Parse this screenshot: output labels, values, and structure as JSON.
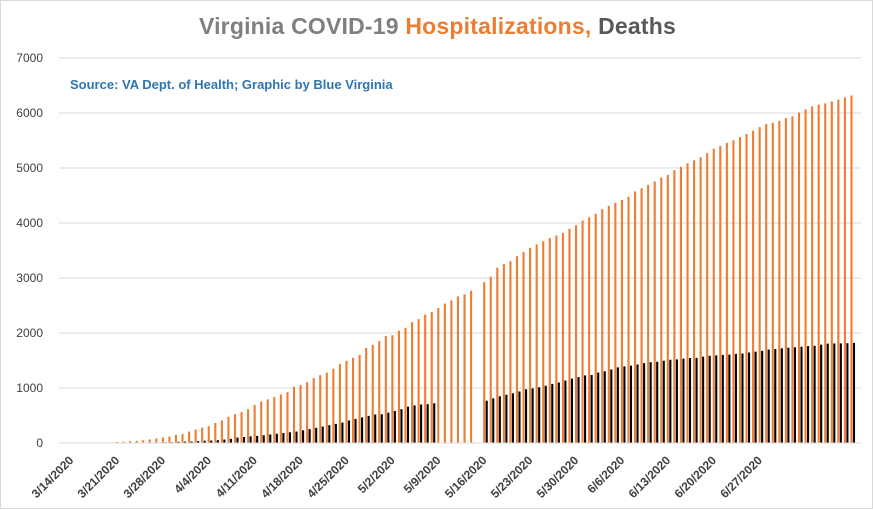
{
  "title": {
    "part1": "Virginia COVID-19 ",
    "part2": "Hospitalizations,",
    "part3": " Deaths"
  },
  "source": "Source: VA Dept. of Health; Graphic by Blue Virginia",
  "colors": {
    "title_gray": "#7f7f7f",
    "title_orange": "#ed7d31",
    "title_dark": "#595959",
    "source": "#2e75b6",
    "hospitalizations": "#ed7d31",
    "deaths": "#000000",
    "grid": "#d9d9d9"
  },
  "chart_data": {
    "type": "bar",
    "title": "Virginia COVID-19 Hospitalizations, Deaths",
    "xlabel": "",
    "ylabel": "",
    "ylim": [
      0,
      7000
    ],
    "yticks": [
      0,
      1000,
      2000,
      3000,
      4000,
      5000,
      6000,
      7000
    ],
    "grid": true,
    "legend": "none",
    "x_tick_labels": [
      "3/14/2020",
      "3/21/2020",
      "3/28/2020",
      "4/4/2020",
      "4/11/2020",
      "4/18/2020",
      "4/25/2020",
      "5/2/2020",
      "5/9/2020",
      "5/16/2020",
      "5/23/2020",
      "5/30/2020",
      "6/6/2020",
      "6/13/2020",
      "6/20/2020",
      "6/27/2020"
    ],
    "x_start": "3/14/2020",
    "x_end": "7/3/2020",
    "series": [
      {
        "key": "hospitalizations",
        "values": [
          0,
          0,
          0,
          0,
          0,
          0,
          0,
          19,
          25,
          34,
          40,
          50,
          65,
          83,
          101,
          116,
          145,
          165,
          208,
          246,
          279,
          305,
          364,
          412,
          476,
          525,
          563,
          615,
          690,
          755,
          793,
          835,
          882,
          924,
          1022,
          1053,
          1105,
          1181,
          1233,
          1278,
          1351,
          1433,
          1494,
          1550,
          1600,
          1728,
          1783,
          1853,
          1943,
          1959,
          2041,
          2095,
          2197,
          2253,
          2335,
          2383,
          2457,
          2535,
          2592,
          2665,
          2702,
          2770,
          0,
          2923,
          3025,
          3189,
          3252,
          3305,
          3396,
          3475,
          3548,
          3611,
          3668,
          3726,
          3773,
          3819,
          3895,
          3959,
          4042,
          4104,
          4168,
          4252,
          4311,
          4366,
          4419,
          4478,
          4574,
          4632,
          4693,
          4756,
          4826,
          4874,
          4961,
          5021,
          5085,
          5140,
          5195,
          5270,
          5352,
          5401,
          5458,
          5505,
          5561,
          5619,
          5678,
          5743,
          5800,
          5821,
          5856,
          5907,
          5939,
          6011,
          6065,
          6120,
          6150,
          6175,
          6211,
          6242,
          6285,
          6319
        ]
      },
      {
        "key": "deaths",
        "values": [
          0,
          0,
          0,
          0,
          0,
          0,
          0,
          2,
          3,
          3,
          5,
          7,
          7,
          9,
          13,
          14,
          22,
          25,
          27,
          34,
          41,
          45,
          51,
          63,
          75,
          99,
          109,
          121,
          130,
          141,
          154,
          169,
          183,
          195,
          208,
          231,
          253,
          277,
          300,
          324,
          348,
          372,
          410,
          438,
          466,
          493,
          518,
          522,
          552,
          581,
          616,
          660,
          684,
          700,
          706,
          722,
          0,
          0,
          0,
          0,
          0,
          0,
          0,
          769,
          812,
          850,
          877,
          904,
          937,
          977,
          992,
          1014,
          1041,
          1074,
          1099,
          1136,
          1171,
          1199,
          1229,
          1236,
          1281,
          1304,
          1338,
          1375,
          1393,
          1407,
          1428,
          1453,
          1470,
          1477,
          1496,
          1514,
          1520,
          1534,
          1545,
          1548,
          1570,
          1586,
          1593,
          1602,
          1607,
          1620,
          1627,
          1645,
          1661,
          1675,
          1700,
          1709,
          1722,
          1732,
          1741,
          1751,
          1762,
          1768,
          1788,
          1807,
          1810,
          1811,
          1815,
          1820,
          1823
        ]
      }
    ]
  }
}
